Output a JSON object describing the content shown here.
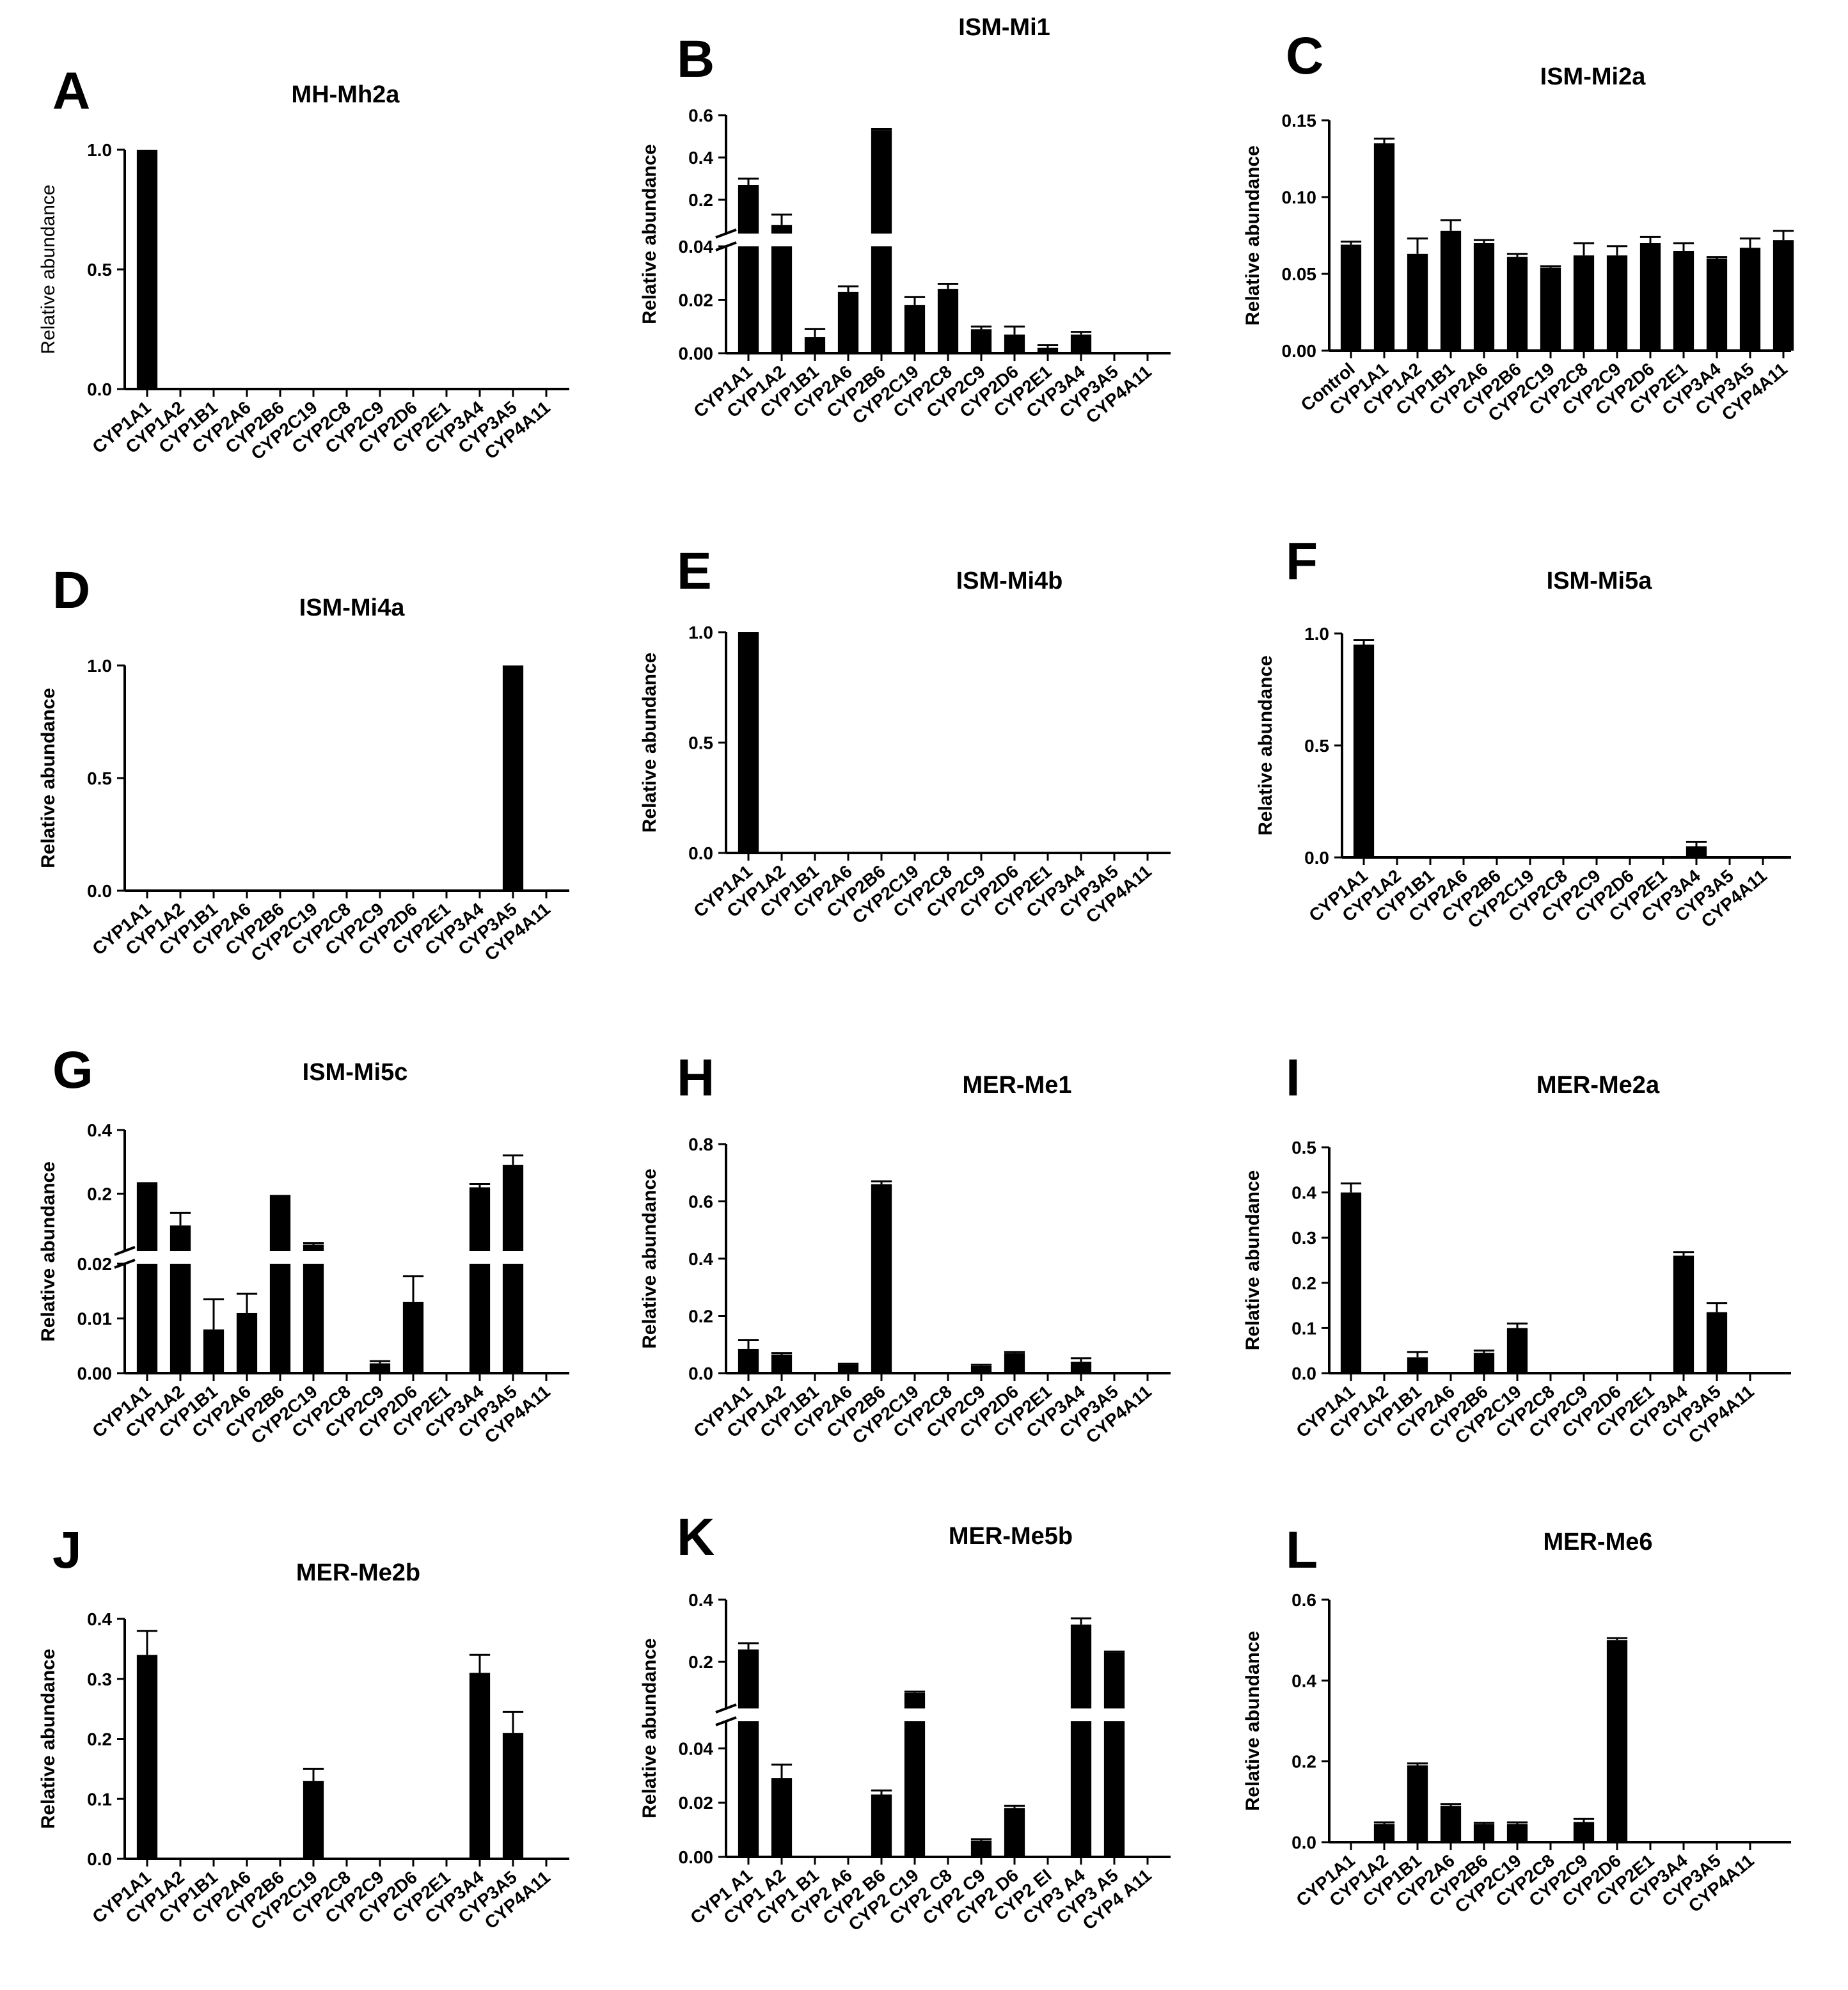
{
  "chart_data": [
    {
      "type": "bar",
      "panel": "A",
      "title": "MH-Mh2a",
      "ylabel": "Relative abundance",
      "categories": [
        "CYP1A1",
        "CYP1A2",
        "CYP1B1",
        "CYP2A6",
        "CYP2B6",
        "CYP2C19",
        "CYP2C8",
        "CYP2C9",
        "CYP2D6",
        "CYP2E1",
        "CYP3A4",
        "CYP3A5",
        "CYP4A11"
      ],
      "values": [
        1.0,
        0,
        0,
        0,
        0,
        0,
        0,
        0,
        0,
        0,
        0,
        0,
        0
      ],
      "errors": [
        0,
        0,
        0,
        0,
        0,
        0,
        0,
        0,
        0,
        0,
        0,
        0,
        0
      ],
      "yticks": [
        "0.0",
        "0.5",
        "1.0"
      ],
      "ylim": [
        0,
        1.0
      ],
      "broken_axis": false
    },
    {
      "type": "bar",
      "panel": "B",
      "title": "ISM-Mi1",
      "ylabel": "Relative abundance",
      "categories": [
        "CYP1A1",
        "CYP1A2",
        "CYP1B1",
        "CYP2A6",
        "CYP2B6",
        "CYP2C19",
        "CYP2C8",
        "CYP2C9",
        "CYP2D6",
        "CYP2E1",
        "CYP3A4",
        "CYP3A5",
        "CYP4A11"
      ],
      "values": [
        0.27,
        0.08,
        0.006,
        0.023,
        0.53,
        0.018,
        0.024,
        0.009,
        0.007,
        0.002,
        0.007,
        0,
        0
      ],
      "errors": [
        0.03,
        0.05,
        0.003,
        0.002,
        0.005,
        0.003,
        0.002,
        0.001,
        0.003,
        0.001,
        0.001,
        0,
        0
      ],
      "yticks": [
        "0.00",
        "0.02",
        "0.04",
        "0.2",
        "0.4",
        "0.6"
      ],
      "ylim": [
        0,
        0.6
      ],
      "broken_axis": true,
      "break": {
        "lower": [
          0,
          0.04
        ],
        "upper": [
          0.04,
          0.6
        ]
      }
    },
    {
      "type": "bar",
      "panel": "C",
      "title": "ISM-Mi2a",
      "ylabel": "Relative abundance",
      "categories": [
        "Control",
        "CYP1A1",
        "CYP1A2",
        "CYP1B1",
        "CYP2A6",
        "CYP2B6",
        "CYP2C19",
        "CYP2C8",
        "CYP2C9",
        "CYP2D6",
        "CYP2E1",
        "CYP3A4",
        "CYP3A5",
        "CYP4A11"
      ],
      "values": [
        0.069,
        0.135,
        0.063,
        0.078,
        0.07,
        0.061,
        0.054,
        0.062,
        0.062,
        0.07,
        0.065,
        0.06,
        0.067,
        0.072
      ],
      "errors": [
        0.002,
        0.003,
        0.01,
        0.007,
        0.002,
        0.002,
        0.001,
        0.008,
        0.006,
        0.004,
        0.005,
        0.001,
        0.006,
        0.006
      ],
      "yticks": [
        "0.00",
        "0.05",
        "0.10",
        "0.15"
      ],
      "ylim": [
        0,
        0.15
      ],
      "broken_axis": false
    },
    {
      "type": "bar",
      "panel": "D",
      "title": "ISM-Mi4a",
      "ylabel": "Relative abundance",
      "categories": [
        "CYP1A1",
        "CYP1A2",
        "CYP1B1",
        "CYP2A6",
        "CYP2B6",
        "CYP2C19",
        "CYP2C8",
        "CYP2C9",
        "CYP2D6",
        "CYP2E1",
        "CYP3A4",
        "CYP3A5",
        "CYP4A11"
      ],
      "values": [
        0,
        0,
        0,
        0,
        0,
        0,
        0,
        0,
        0,
        0,
        0,
        1.0,
        0
      ],
      "errors": [
        0,
        0,
        0,
        0,
        0,
        0,
        0,
        0,
        0,
        0,
        0,
        0,
        0
      ],
      "yticks": [
        "0.0",
        "0.5",
        "1.0"
      ],
      "ylim": [
        0,
        1.0
      ],
      "broken_axis": false
    },
    {
      "type": "bar",
      "panel": "E",
      "title": "ISM-Mi4b",
      "ylabel": "Relative abundance",
      "categories": [
        "CYP1A1",
        "CYP1A2",
        "CYP1B1",
        "CYP2A6",
        "CYP2B6",
        "CYP2C19",
        "CYP2C8",
        "CYP2C9",
        "CYP2D6",
        "CYP2E1",
        "CYP3A4",
        "CYP3A5",
        "CYP4A11"
      ],
      "values": [
        1.0,
        0,
        0,
        0,
        0,
        0,
        0,
        0,
        0,
        0,
        0,
        0,
        0
      ],
      "errors": [
        0,
        0,
        0,
        0,
        0,
        0,
        0,
        0,
        0,
        0,
        0,
        0,
        0
      ],
      "yticks": [
        "0.0",
        "0.5",
        "1.0"
      ],
      "ylim": [
        0,
        1.0
      ],
      "broken_axis": false
    },
    {
      "type": "bar",
      "panel": "F",
      "title": "ISM-Mi5a",
      "ylabel": "Relative abundance",
      "categories": [
        "CYP1A1",
        "CYP1A2",
        "CYP1B1",
        "CYP2A6",
        "CYP2B6",
        "CYP2C19",
        "CYP2C8",
        "CYP2C9",
        "CYP2D6",
        "CYP2E1",
        "CYP3A4",
        "CYP3A5",
        "CYP4A11"
      ],
      "values": [
        0.95,
        0,
        0,
        0,
        0,
        0,
        0,
        0,
        0,
        0,
        0.05,
        0,
        0
      ],
      "errors": [
        0.02,
        0,
        0,
        0,
        0,
        0,
        0,
        0,
        0,
        0,
        0.02,
        0,
        0
      ],
      "yticks": [
        "0.0",
        "0.5",
        "1.0"
      ],
      "ylim": [
        0,
        1.0
      ],
      "broken_axis": false
    },
    {
      "type": "bar",
      "panel": "G",
      "title": "ISM-Mi5c",
      "ylabel": "Relative abundance",
      "categories": [
        "CYP1A1",
        "CYP1A2",
        "CYP1B1",
        "CYP2A6",
        "CYP2B6",
        "CYP2C19",
        "CYP2C8",
        "CYP2C9",
        "CYP2D6",
        "CYP2E1",
        "CYP3A4",
        "CYP3A5",
        "CYP4A11"
      ],
      "values": [
        0.23,
        0.1,
        0.008,
        0.011,
        0.19,
        0.04,
        0,
        0.0018,
        0.013,
        0,
        0.22,
        0.29,
        0
      ],
      "errors": [
        0.003,
        0.04,
        0.0055,
        0.0035,
        0.003,
        0.005,
        0,
        0.0004,
        0.0047,
        0,
        0.01,
        0.03,
        0
      ],
      "yticks": [
        "0.00",
        "0.01",
        "0.02",
        "0.2",
        "0.4"
      ],
      "ylim": [
        0,
        0.4
      ],
      "broken_axis": true,
      "break": {
        "lower": [
          0,
          0.02
        ],
        "upper": [
          0.02,
          0.4
        ]
      }
    },
    {
      "type": "bar",
      "panel": "H",
      "title": "MER-Me1",
      "ylabel": "Relative abundance",
      "categories": [
        "CYP1A1",
        "CYP1A2",
        "CYP1B1",
        "CYP2A6",
        "CYP2B6",
        "CYP2C19",
        "CYP2C8",
        "CYP2C9",
        "CYP2D6",
        "CYP2E1",
        "CYP3A4",
        "CYP3A5",
        "CYP4A11"
      ],
      "values": [
        0.085,
        0.065,
        0,
        0.03,
        0.66,
        0,
        0,
        0.025,
        0.07,
        0,
        0.04,
        0,
        0
      ],
      "errors": [
        0.03,
        0.005,
        0,
        0.003,
        0.01,
        0,
        0,
        0.004,
        0.004,
        0,
        0.012,
        0,
        0
      ],
      "yticks": [
        "0.0",
        "0.2",
        "0.4",
        "0.6",
        "0.8"
      ],
      "ylim": [
        0,
        0.8
      ],
      "broken_axis": false
    },
    {
      "type": "bar",
      "panel": "I",
      "title": "MER-Me2a",
      "ylabel": "Relative abundance",
      "categories": [
        "CYP1A1",
        "CYP1A2",
        "CYP1B1",
        "CYP2A6",
        "CYP2B6",
        "CYP2C19",
        "CYP2C8",
        "CYP2C9",
        "CYP2D6",
        "CYP2E1",
        "CYP3A4",
        "CYP3A5",
        "CYP4A11"
      ],
      "values": [
        0.4,
        0,
        0.035,
        0,
        0.045,
        0.1,
        0,
        0,
        0,
        0,
        0.26,
        0.135,
        0
      ],
      "errors": [
        0.02,
        0,
        0.012,
        0,
        0.005,
        0.01,
        0,
        0,
        0,
        0,
        0.008,
        0.02,
        0
      ],
      "yticks": [
        "0.0",
        "0.1",
        "0.2",
        "0.3",
        "0.4",
        "0.5"
      ],
      "ylim": [
        0,
        0.5
      ],
      "broken_axis": false
    },
    {
      "type": "bar",
      "panel": "J",
      "title": "MER-Me2b",
      "ylabel": "Relative abundance",
      "categories": [
        "CYP1A1",
        "CYP1A2",
        "CYP1B1",
        "CYP2A6",
        "CYP2B6",
        "CYP2C19",
        "CYP2C8",
        "CYP2C9",
        "CYP2D6",
        "CYP2E1",
        "CYP3A4",
        "CYP3A5",
        "CYP4A11"
      ],
      "values": [
        0.34,
        0,
        0,
        0,
        0,
        0.13,
        0,
        0,
        0,
        0,
        0.31,
        0.21,
        0
      ],
      "errors": [
        0.04,
        0,
        0,
        0,
        0,
        0.02,
        0,
        0,
        0,
        0,
        0.03,
        0.035,
        0
      ],
      "yticks": [
        "0.0",
        "0.1",
        "0.2",
        "0.3",
        "0.4"
      ],
      "ylim": [
        0,
        0.4
      ],
      "broken_axis": false
    },
    {
      "type": "bar",
      "panel": "K",
      "title": "MER-Me5b",
      "ylabel": "Relative abundance",
      "categories": [
        "CYP1 A1",
        "CYP1 A2",
        "CYP1 B1",
        "CYP2 A6",
        "CYP2 B6",
        "CYP2 C19",
        "CYP2 C8",
        "CYP2 C9",
        "CYP2 D6",
        "CYP2 EI",
        "CYP3 A4",
        "CYP3 A5",
        "CYP4 A11"
      ],
      "values": [
        0.24,
        0.029,
        0,
        0,
        0.023,
        0.1,
        0,
        0.006,
        0.018,
        0,
        0.32,
        0.23,
        0
      ],
      "errors": [
        0.02,
        0.005,
        0,
        0,
        0.0015,
        0.004,
        0,
        0.0005,
        0.0008,
        0,
        0.02,
        0.003,
        0
      ],
      "yticks": [
        "0.00",
        "0.02",
        "0.04",
        "0.2",
        "0.4"
      ],
      "ylim": [
        0,
        0.4
      ],
      "broken_axis": true,
      "break": {
        "lower": [
          0,
          0.05
        ],
        "upper": [
          0.05,
          0.4
        ]
      }
    },
    {
      "type": "bar",
      "panel": "L",
      "title": "MER-Me6",
      "ylabel": "Relative abundance",
      "categories": [
        "CYP1A1",
        "CYP1A2",
        "CYP1B1",
        "CYP2A6",
        "CYP2B6",
        "CYP2C19",
        "CYP2C8",
        "CYP2C9",
        "CYP2D6",
        "CYP2E1",
        "CYP3A4",
        "CYP3A5",
        "CYP4A11"
      ],
      "values": [
        0,
        0.045,
        0.19,
        0.09,
        0.045,
        0.045,
        0,
        0.05,
        0.5,
        0,
        0,
        0,
        0
      ],
      "errors": [
        0,
        0.004,
        0.005,
        0.004,
        0.003,
        0.004,
        0,
        0.008,
        0.005,
        0,
        0,
        0,
        0
      ],
      "yticks": [
        "0.0",
        "0.2",
        "0.4",
        "0.6"
      ],
      "ylim": [
        0,
        0.6
      ],
      "broken_axis": false
    }
  ]
}
